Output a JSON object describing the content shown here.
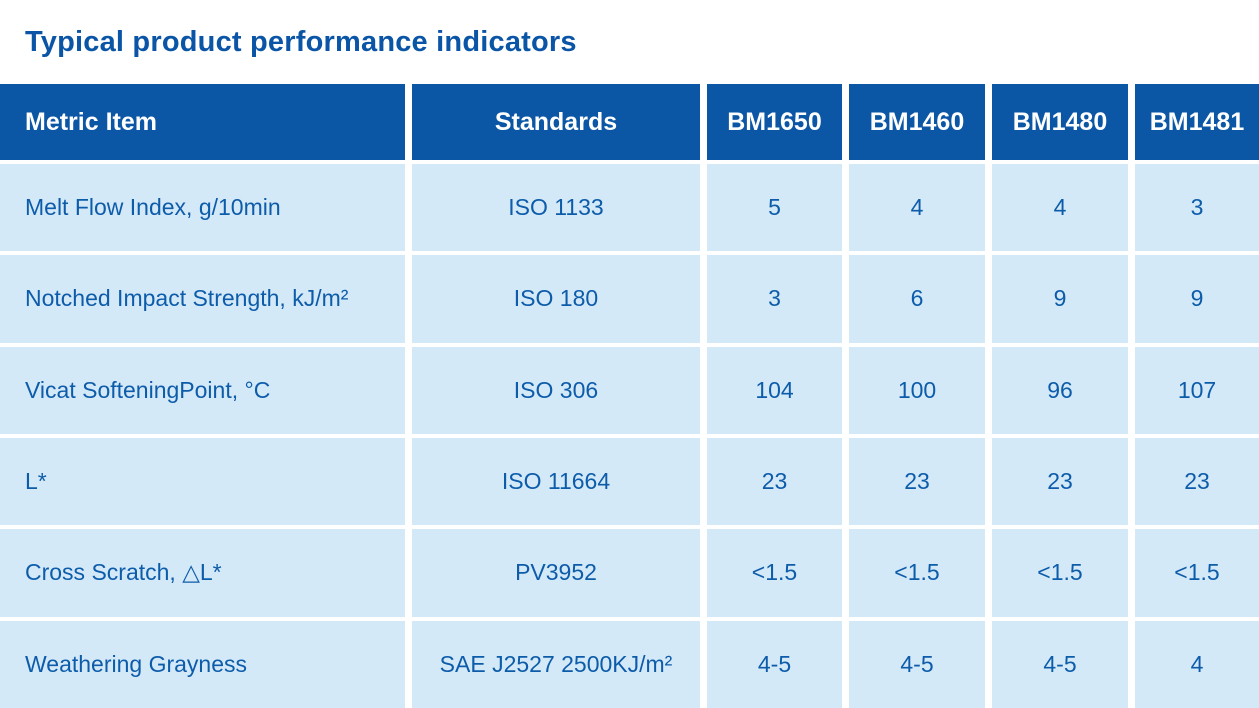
{
  "page": {
    "title": "Typical product performance indicators"
  },
  "colors": {
    "header_bg": "#0c57a5",
    "cell_bg": "#d4e9f8",
    "cell_text": "#0d5caa",
    "title_text": "#0b55a6",
    "header_text": "#ffffff"
  },
  "table": {
    "columns": [
      "Metric Item",
      "Standards",
      "BM1650",
      "BM1460",
      "BM1480",
      "BM1481"
    ],
    "rows": [
      {
        "metric": "Melt Flow Index, g/10min",
        "standard": "ISO 1133",
        "values": [
          "5",
          "4",
          "4",
          "3"
        ]
      },
      {
        "metric": "Notched Impact Strength, kJ/m²",
        "standard": "ISO 180",
        "values": [
          "3",
          "6",
          "9",
          "9"
        ]
      },
      {
        "metric": "Vicat SofteningPoint, °C",
        "standard": "ISO 306",
        "values": [
          "104",
          "100",
          "96",
          "107"
        ]
      },
      {
        "metric": "L*",
        "standard": "ISO 11664",
        "values": [
          "23",
          "23",
          "23",
          "23"
        ]
      },
      {
        "metric": "Cross Scratch, △L*",
        "standard": "PV3952",
        "values": [
          "<1.5",
          "<1.5",
          "<1.5",
          "<1.5"
        ]
      },
      {
        "metric": "Weathering Grayness",
        "standard": "SAE J2527 2500KJ/m²",
        "values": [
          "4-5",
          "4-5",
          "4-5",
          "4"
        ]
      }
    ]
  }
}
